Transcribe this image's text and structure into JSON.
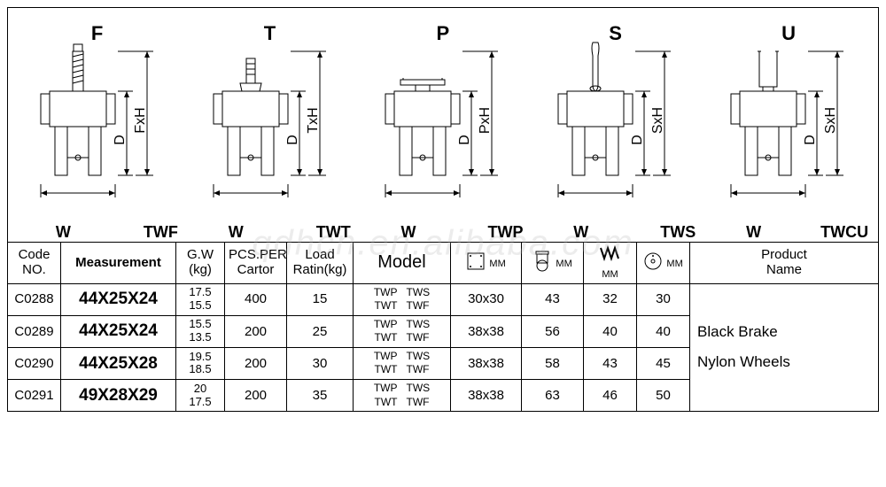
{
  "watermark": "qdhcn.en.alibaba.com",
  "diagrams": [
    {
      "letter": "F",
      "code": "TWF",
      "dimD": "D",
      "dimH": "FxH",
      "w": "W",
      "stemType": "threaded"
    },
    {
      "letter": "T",
      "code": "TWT",
      "dimD": "D",
      "dimH": "TxH",
      "w": "W",
      "stemType": "grip"
    },
    {
      "letter": "P",
      "code": "TWP",
      "dimD": "D",
      "dimH": "PxH",
      "w": "W",
      "stemType": "plate"
    },
    {
      "letter": "S",
      "code": "TWS",
      "dimD": "D",
      "dimH": "SxH",
      "w": "W",
      "stemType": "pin"
    },
    {
      "letter": "U",
      "code": "TWCU",
      "dimD": "D",
      "dimH": "SxH",
      "w": "W",
      "stemType": "ubracket"
    }
  ],
  "table": {
    "headers": {
      "code": "Code\nNO.",
      "measurement": "Measurement",
      "gw": "G.W\n(kg)",
      "pcs": "PCS.PER\nCartor",
      "load": "Load\nRatin(kg)",
      "model": "Model",
      "mm": "MM",
      "productName": "Product\nName"
    },
    "rows": [
      {
        "code": "C0288",
        "measurement": "44X25X24",
        "gw": "17.5\n15.5",
        "pcs": "400",
        "load": "15",
        "model": "TWP  TWS\nTWT  TWF",
        "mm1": "30x30",
        "mm2": "43",
        "mm3": "32",
        "mm4": "30"
      },
      {
        "code": "C0289",
        "measurement": "44X25X24",
        "gw": "15.5\n13.5",
        "pcs": "200",
        "load": "25",
        "model": "TWP  TWS\nTWT  TWF",
        "mm1": "38x38",
        "mm2": "56",
        "mm3": "40",
        "mm4": "40"
      },
      {
        "code": "C0290",
        "measurement": "44X25X28",
        "gw": "19.5\n18.5",
        "pcs": "200",
        "load": "30",
        "model": "TWP  TWS\nTWT  TWF",
        "mm1": "38x38",
        "mm2": "58",
        "mm3": "43",
        "mm4": "45"
      },
      {
        "code": "C0291",
        "measurement": "49X28X29",
        "gw": "20\n17.5",
        "pcs": "200",
        "load": "35",
        "model": "TWP  TWS\nTWT  TWF",
        "mm1": "38x38",
        "mm2": "63",
        "mm3": "46",
        "mm4": "50"
      }
    ],
    "productName": "Black Brake\nNylon Wheels"
  },
  "colors": {
    "line": "#000000",
    "bg": "#ffffff"
  }
}
